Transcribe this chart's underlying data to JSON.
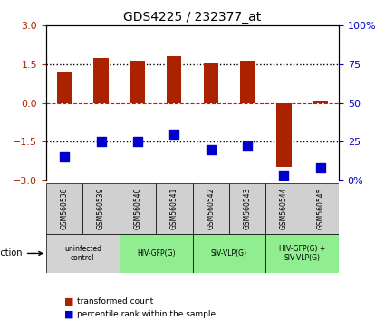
{
  "title": "GDS4225 / 232377_at",
  "samples": [
    "GSM560538",
    "GSM560539",
    "GSM560540",
    "GSM560541",
    "GSM560542",
    "GSM560543",
    "GSM560544",
    "GSM560545"
  ],
  "red_bars": [
    1.2,
    1.75,
    1.65,
    1.8,
    1.55,
    1.65,
    -2.5,
    0.1
  ],
  "blue_squares": [
    15,
    25,
    25,
    30,
    20,
    22,
    3,
    8
  ],
  "ylim_left": [
    -3,
    3
  ],
  "ylim_right": [
    0,
    100
  ],
  "hlines": [
    1.5,
    0.0,
    -1.5
  ],
  "hline_styles": [
    "dotted",
    "dashed",
    "dotted"
  ],
  "hline_colors": [
    "black",
    "red",
    "black"
  ],
  "groups": [
    {
      "label": "uninfected\ncontrol",
      "start": 0,
      "end": 2,
      "color": "#d3d3d3"
    },
    {
      "label": "HIV-GFP(G)",
      "start": 2,
      "end": 4,
      "color": "#90ee90"
    },
    {
      "label": "SIV-VLP(G)",
      "start": 4,
      "end": 6,
      "color": "#90ee90"
    },
    {
      "label": "HIV-GFP(G) +\nSIV-VLP(G)",
      "start": 6,
      "end": 8,
      "color": "#90ee90"
    }
  ],
  "bar_color": "#aa2200",
  "square_color": "#0000cc",
  "left_ylabel_color": "#aa2200",
  "right_ylabel_color": "#0000cc",
  "yticks_left": [
    -3,
    -1.5,
    0,
    1.5,
    3
  ],
  "yticks_right": [
    0,
    25,
    50,
    75,
    100
  ],
  "ytick_labels_right": [
    "0%",
    "25",
    "50",
    "75",
    "100%"
  ],
  "bar_width": 0.4,
  "square_size": 60
}
